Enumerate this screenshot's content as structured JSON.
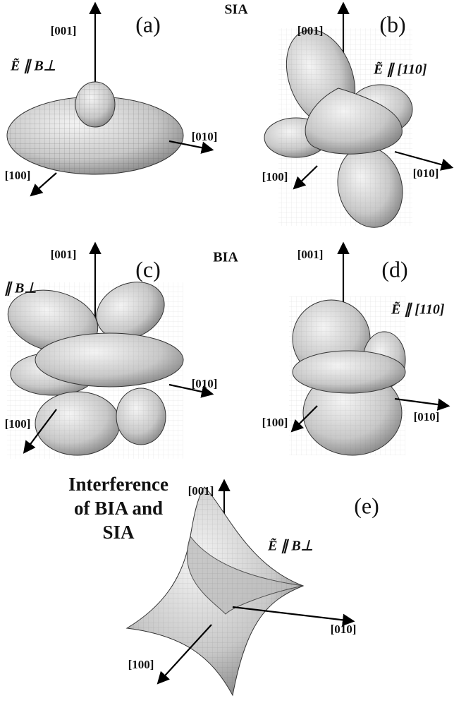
{
  "headings": {
    "sia": "SIA",
    "bia": "BIA"
  },
  "panels": [
    {
      "label": "(a)",
      "axis_z": "[001]",
      "axis_y": "[010]",
      "axis_x": "[100]",
      "field": "Ẽ ∥ B⊥"
    },
    {
      "label": "(b)",
      "axis_z": "[001]",
      "axis_y": "[010]",
      "axis_x": "[100]",
      "field": "Ẽ ∥ [110]"
    },
    {
      "label": "(c)",
      "axis_z": "[001]",
      "axis_y": "[010]",
      "axis_x": "[100]",
      "field": "∥ B⊥"
    },
    {
      "label": "(d)",
      "axis_z": "[001]",
      "axis_y": "[010]",
      "axis_x": "[100]",
      "field": "Ẽ ∥ [110]"
    },
    {
      "label": "(e)",
      "axis_z": "[001]",
      "axis_y": "[010]",
      "axis_x": "[100]",
      "field": "Ẽ ∥ B⊥"
    }
  ],
  "panel_e_title": [
    "Interference",
    "of BIA and",
    "SIA"
  ]
}
